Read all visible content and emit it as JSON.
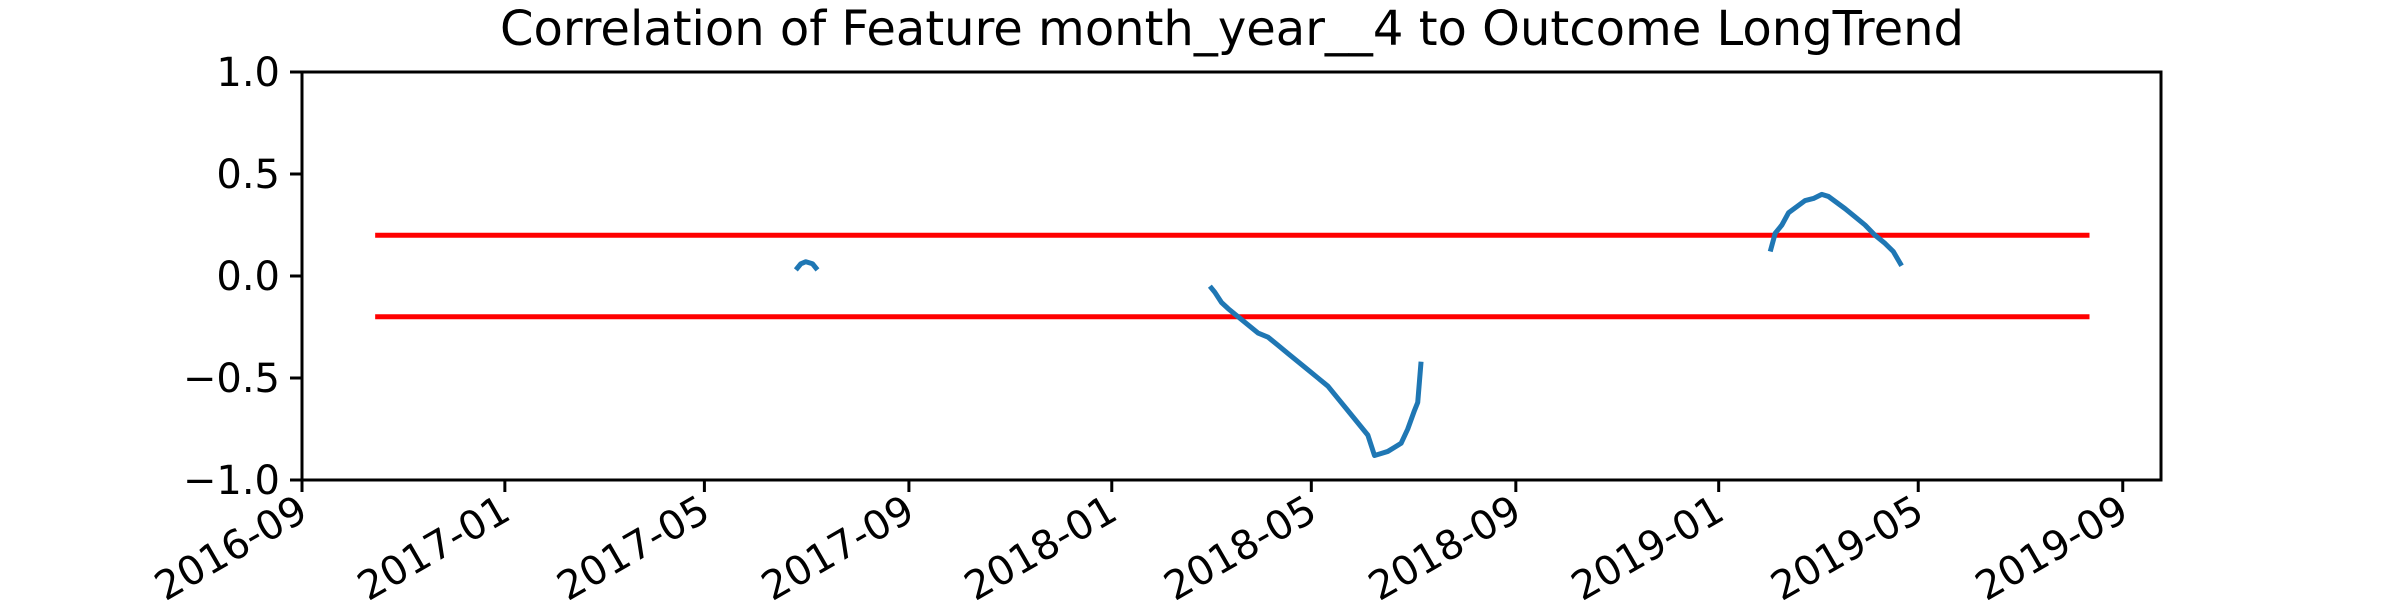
{
  "chart_data": {
    "type": "line",
    "title": "Correlation of Feature month_year__4 to Outcome LongTrend",
    "xlabel": "",
    "ylabel": "",
    "x_axis_type": "date",
    "xlim": [
      "2016-09-01",
      "2019-09-24"
    ],
    "ylim": [
      -1.0,
      1.0
    ],
    "xticks": [
      "2016-09",
      "2017-01",
      "2017-05",
      "2017-09",
      "2018-01",
      "2018-05",
      "2018-09",
      "2019-01",
      "2019-05",
      "2019-09"
    ],
    "yticks": [
      -1.0,
      -0.5,
      0.0,
      0.5,
      1.0
    ],
    "grid": false,
    "legend": "none",
    "series": [
      {
        "color": "#1f77b4",
        "segments": [
          [
            {
              "x": "2017-06-25",
              "y": 0.03
            },
            {
              "x": "2017-06-28",
              "y": 0.06
            },
            {
              "x": "2017-07-01",
              "y": 0.07
            },
            {
              "x": "2017-07-05",
              "y": 0.06
            },
            {
              "x": "2017-07-08",
              "y": 0.03
            }
          ],
          [
            {
              "x": "2018-03-01",
              "y": -0.05
            },
            {
              "x": "2018-03-04",
              "y": -0.08
            },
            {
              "x": "2018-03-08",
              "y": -0.13
            },
            {
              "x": "2018-03-12",
              "y": -0.16
            },
            {
              "x": "2018-03-18",
              "y": -0.2
            },
            {
              "x": "2018-03-24",
              "y": -0.24
            },
            {
              "x": "2018-03-30",
              "y": -0.28
            },
            {
              "x": "2018-04-05",
              "y": -0.3
            },
            {
              "x": "2018-04-11",
              "y": -0.34
            },
            {
              "x": "2018-04-17",
              "y": -0.38
            },
            {
              "x": "2018-04-23",
              "y": -0.42
            },
            {
              "x": "2018-04-29",
              "y": -0.46
            },
            {
              "x": "2018-05-05",
              "y": -0.5
            },
            {
              "x": "2018-05-11",
              "y": -0.54
            },
            {
              "x": "2018-05-17",
              "y": -0.6
            },
            {
              "x": "2018-05-23",
              "y": -0.66
            },
            {
              "x": "2018-05-29",
              "y": -0.72
            },
            {
              "x": "2018-06-04",
              "y": -0.78
            },
            {
              "x": "2018-06-08",
              "y": -0.88
            },
            {
              "x": "2018-06-12",
              "y": -0.87
            },
            {
              "x": "2018-06-16",
              "y": -0.86
            },
            {
              "x": "2018-06-20",
              "y": -0.84
            },
            {
              "x": "2018-06-24",
              "y": -0.82
            },
            {
              "x": "2018-06-28",
              "y": -0.75
            },
            {
              "x": "2018-07-02",
              "y": -0.66
            },
            {
              "x": "2018-07-04",
              "y": -0.62
            },
            {
              "x": "2018-07-06",
              "y": -0.42
            }
          ],
          [
            {
              "x": "2019-02-01",
              "y": 0.12
            },
            {
              "x": "2019-02-04",
              "y": 0.21
            },
            {
              "x": "2019-02-08",
              "y": 0.25
            },
            {
              "x": "2019-02-12",
              "y": 0.31
            },
            {
              "x": "2019-02-17",
              "y": 0.34
            },
            {
              "x": "2019-02-22",
              "y": 0.37
            },
            {
              "x": "2019-02-27",
              "y": 0.38
            },
            {
              "x": "2019-03-04",
              "y": 0.4
            },
            {
              "x": "2019-03-08",
              "y": 0.39
            },
            {
              "x": "2019-03-13",
              "y": 0.36
            },
            {
              "x": "2019-03-18",
              "y": 0.33
            },
            {
              "x": "2019-03-24",
              "y": 0.29
            },
            {
              "x": "2019-03-30",
              "y": 0.25
            },
            {
              "x": "2019-04-05",
              "y": 0.2
            },
            {
              "x": "2019-04-11",
              "y": 0.16
            },
            {
              "x": "2019-04-16",
              "y": 0.12
            },
            {
              "x": "2019-04-21",
              "y": 0.05
            }
          ]
        ]
      }
    ],
    "reference_lines": [
      {
        "y": 0.2,
        "x_start": "2016-10-15",
        "x_end": "2019-08-12",
        "color": "#ff0000"
      },
      {
        "y": -0.2,
        "x_start": "2016-10-15",
        "x_end": "2019-08-12",
        "color": "#ff0000"
      }
    ],
    "colors": {
      "axis": "#000000",
      "line": "#1f77b4",
      "threshold": "#ff0000"
    }
  }
}
